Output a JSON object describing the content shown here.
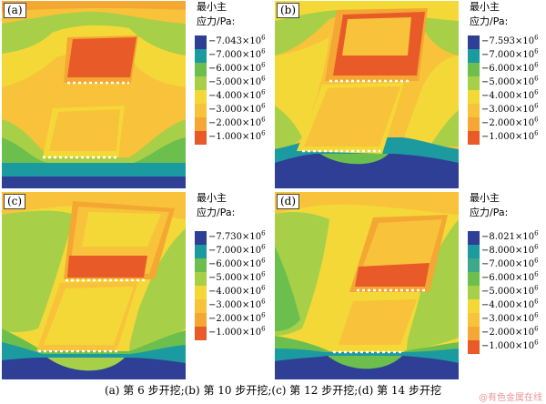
{
  "panels": [
    {
      "tag": "(a)",
      "legend_title_1": "最小主",
      "legend_title_2": "应力/Pa:",
      "legend": [
        "−7.043×10",
        "−7.000×10",
        "−6.000×10",
        "−5.000×10",
        "−4.000×10",
        "−3.000×10",
        "−2.000×10",
        "−1.000×10"
      ],
      "exponent": "6"
    },
    {
      "tag": "(b)",
      "legend_title_1": "最小主",
      "legend_title_2": "应力/Pa:",
      "legend": [
        "−7.593×10",
        "−7.000×10",
        "−6.000×10",
        "−5.000×10",
        "−4.000×10",
        "−3.000×10",
        "−2.000×10",
        "−1.000×10"
      ],
      "exponent": "6"
    },
    {
      "tag": "(c)",
      "legend_title_1": "最小主",
      "legend_title_2": "应力/Pa:",
      "legend": [
        "−7.730×10",
        "−7.000×10",
        "−6.000×10",
        "−5.000×10",
        "−4.000×10",
        "−3.000×10",
        "−2.000×10",
        "−1.000×10"
      ],
      "exponent": "6"
    },
    {
      "tag": "(d)",
      "legend_title_1": "最小主",
      "legend_title_2": "应力/Pa:",
      "legend": [
        "−8.021×10",
        "−8.000×10",
        "−7.000×10",
        "−6.000×10",
        "−5.000×10",
        "−4.000×10",
        "−3.000×10",
        "−2.000×10",
        "−1.000×10"
      ],
      "exponent": "6"
    }
  ],
  "colors": {
    "navy": "#2e3f95",
    "teal": "#1b9aa0",
    "green": "#6cbf4d",
    "lime": "#a7cf48",
    "yellow": "#f4d838",
    "lightorange": "#f8c23a",
    "orange": "#f4a732",
    "red": "#e85a28"
  },
  "legend_colors": {
    "eight": [
      "#2e3f95",
      "#1b9aa0",
      "#6cbf4d",
      "#a7cf48",
      "#f4d838",
      "#f8c23a",
      "#f4a732",
      "#e85a28"
    ],
    "nine": [
      "#2e3f95",
      "#1b9aa0",
      "#3ea98a",
      "#6cbf4d",
      "#a7cf48",
      "#f4d838",
      "#f8c23a",
      "#f4a732",
      "#e85a28"
    ]
  },
  "caption": "(a) 第 6 步开挖;(b) 第 10 步开挖;(c) 第 12 步开挖;(d) 第 14 步开挖",
  "watermark": "@有色金属在线"
}
